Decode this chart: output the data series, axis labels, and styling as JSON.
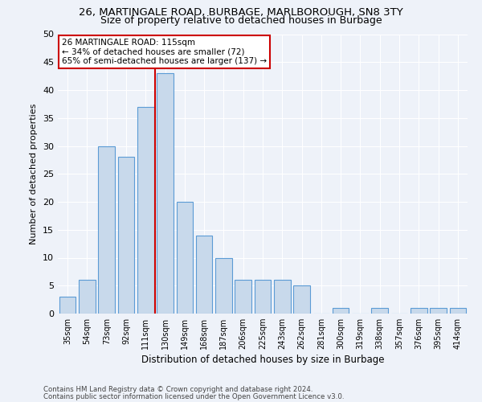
{
  "title1": "26, MARTINGALE ROAD, BURBAGE, MARLBOROUGH, SN8 3TY",
  "title2": "Size of property relative to detached houses in Burbage",
  "xlabel": "Distribution of detached houses by size in Burbage",
  "ylabel": "Number of detached properties",
  "categories": [
    "35sqm",
    "54sqm",
    "73sqm",
    "92sqm",
    "111sqm",
    "130sqm",
    "149sqm",
    "168sqm",
    "187sqm",
    "206sqm",
    "225sqm",
    "243sqm",
    "262sqm",
    "281sqm",
    "300sqm",
    "319sqm",
    "338sqm",
    "357sqm",
    "376sqm",
    "395sqm",
    "414sqm"
  ],
  "values": [
    3,
    6,
    30,
    28,
    37,
    43,
    20,
    14,
    10,
    6,
    6,
    6,
    5,
    0,
    1,
    0,
    1,
    0,
    1,
    1,
    1
  ],
  "bar_color": "#c8d9eb",
  "bar_edge_color": "#5b9bd5",
  "vline_x_index": 4,
  "vline_color": "#cc0000",
  "annotation_line1": "26 MARTINGALE ROAD: 115sqm",
  "annotation_line2": "← 34% of detached houses are smaller (72)",
  "annotation_line3": "65% of semi-detached houses are larger (137) →",
  "annotation_box_color": "#ffffff",
  "annotation_box_edge": "#cc0000",
  "ylim": [
    0,
    50
  ],
  "yticks": [
    0,
    5,
    10,
    15,
    20,
    25,
    30,
    35,
    40,
    45,
    50
  ],
  "footer1": "Contains HM Land Registry data © Crown copyright and database right 2024.",
  "footer2": "Contains public sector information licensed under the Open Government Licence v3.0.",
  "bg_color": "#eef2f9",
  "grid_color": "#ffffff",
  "title1_fontsize": 9.5,
  "title2_fontsize": 9
}
